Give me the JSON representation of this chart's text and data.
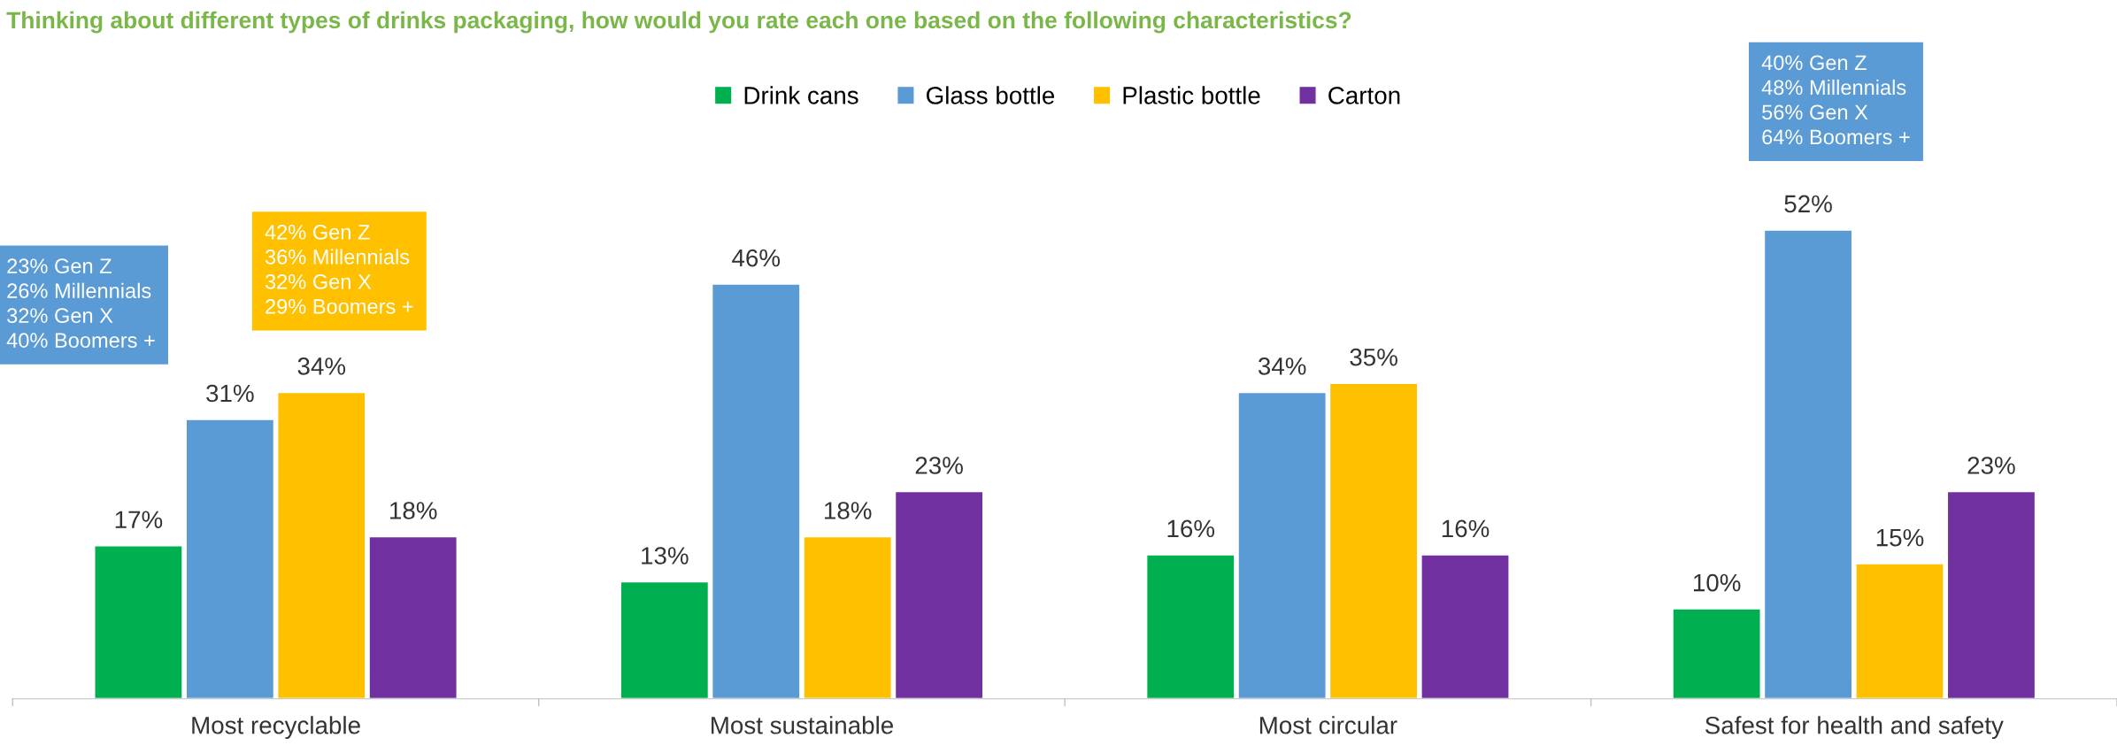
{
  "chart_data": {
    "type": "bar",
    "title": "Thinking about different types of drinks packaging, how would you rate each one based on the following characteristics?",
    "categories": [
      "Most recyclable",
      "Most sustainable",
      "Most circular",
      "Safest for health and safety"
    ],
    "series": [
      {
        "name": "Drink cans",
        "color": "#00b050",
        "values": [
          17,
          13,
          16,
          10
        ],
        "value_labels": [
          "17%",
          "13%",
          "16%",
          "10%"
        ]
      },
      {
        "name": "Glass bottle",
        "color": "#5b9bd5",
        "values": [
          31,
          46,
          34,
          52
        ],
        "value_labels": [
          "31%",
          "46%",
          "34%",
          "52%"
        ]
      },
      {
        "name": "Plastic bottle",
        "color": "#ffc000",
        "values": [
          34,
          18,
          35,
          15
        ],
        "value_labels": [
          "34%",
          "18%",
          "35%",
          "15%"
        ]
      },
      {
        "name": "Carton",
        "color": "#7030a0",
        "values": [
          18,
          23,
          16,
          23
        ],
        "value_labels": [
          "18%",
          "23%",
          "16%",
          "23%"
        ]
      }
    ],
    "legend": "top",
    "grid": false,
    "annotations": [
      "23% Gen Z\n26% Millennials\n32% Gen X\n40% Boomers +",
      "42% Gen Z\n36% Millennials\n32% Gen X\n29% Boomers +",
      "40% Gen Z\n48% Millennials\n56% Gen X\n64% Boomers +"
    ]
  }
}
